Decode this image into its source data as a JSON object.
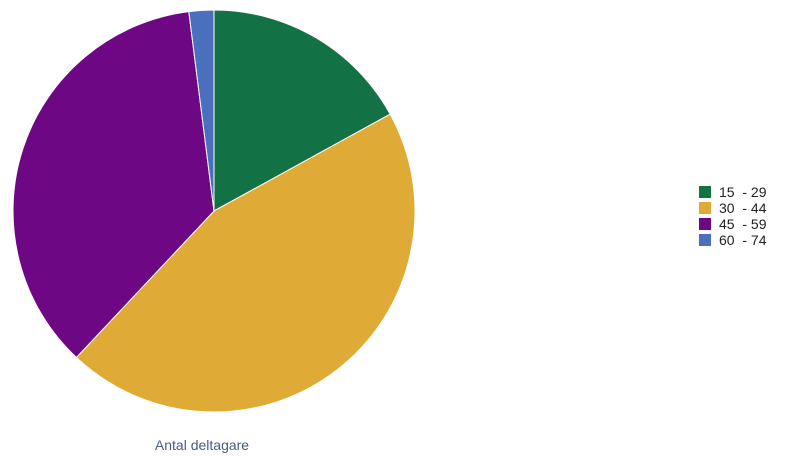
{
  "chart_data": {
    "type": "pie",
    "title": "",
    "caption": "Antal deltagare",
    "legend_position": "right",
    "slices": [
      {
        "label": "15  - 29",
        "value": 17,
        "color": "#127245"
      },
      {
        "label": "30  - 44",
        "value": 45,
        "color": "#e0aa36"
      },
      {
        "label": "45  - 59",
        "value": 36,
        "color": "#6e0784"
      },
      {
        "label": "60  - 74",
        "value": 2,
        "color": "#4a70bd"
      }
    ]
  }
}
